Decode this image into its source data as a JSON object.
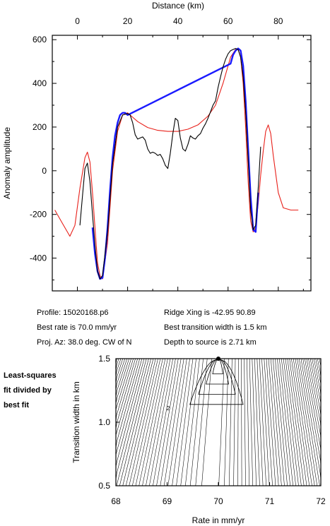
{
  "chart_data": [
    {
      "type": "line",
      "title": "",
      "xlabel": "Distance (km)",
      "ylabel": "Anomaly amplitude",
      "xlim": [
        -10,
        93
      ],
      "ylim": [
        -550,
        620
      ],
      "x_ticks": [
        0,
        20,
        40,
        60,
        80
      ],
      "y_ticks": [
        600,
        400,
        200,
        0,
        -200,
        -400
      ],
      "grid": false,
      "series": [
        {
          "color": "#e8201a",
          "x": [
            -9,
            -6,
            -3,
            -1,
            1,
            3,
            4,
            5,
            6,
            7,
            8,
            9,
            10,
            12,
            14,
            16,
            18,
            20,
            22,
            24,
            28,
            32,
            36,
            40,
            44,
            48,
            52,
            55,
            58,
            61,
            63,
            64,
            65,
            66,
            67,
            68,
            69,
            70,
            71,
            72,
            73,
            74,
            75,
            76,
            77,
            78,
            80,
            82,
            85,
            88
          ],
          "y": [
            -180,
            -240,
            -300,
            -250,
            -80,
            60,
            85,
            40,
            -100,
            -260,
            -420,
            -480,
            -495,
            -330,
            0,
            180,
            255,
            265,
            245,
            225,
            198,
            185,
            180,
            180,
            190,
            210,
            250,
            300,
            400,
            520,
            555,
            555,
            520,
            400,
            200,
            -50,
            -230,
            -280,
            -260,
            -150,
            -20,
            90,
            180,
            210,
            170,
            70,
            -100,
            -170,
            -180,
            -180
          ]
        },
        {
          "color": "#1a1aff",
          "x": [
            6,
            7,
            8,
            9,
            10,
            11,
            12,
            13,
            14,
            15,
            16,
            17,
            18,
            19,
            20,
            61,
            62,
            63,
            64,
            65,
            66,
            67,
            68,
            69,
            70,
            71,
            72
          ],
          "y": [
            -260,
            -380,
            -460,
            -495,
            -490,
            -400,
            -260,
            -90,
            60,
            160,
            220,
            255,
            265,
            265,
            255,
            490,
            530,
            550,
            560,
            550,
            480,
            320,
            100,
            -120,
            -270,
            -280,
            -100
          ]
        },
        {
          "color": "#000000",
          "x": [
            1,
            2,
            3,
            4,
            5,
            6,
            7,
            8,
            9,
            10,
            12,
            14,
            16,
            18,
            20,
            21,
            22,
            23,
            24,
            25,
            26,
            27,
            28,
            29,
            30,
            31,
            32,
            33,
            34,
            35,
            36,
            37,
            38,
            39,
            40,
            41,
            42,
            43,
            44,
            45,
            46,
            47,
            48,
            49,
            50,
            51,
            52,
            53,
            54,
            55,
            56,
            57,
            58,
            59,
            60,
            61,
            62,
            63,
            64,
            65,
            66,
            67,
            68,
            69,
            70,
            71,
            72,
            73
          ],
          "y": [
            -250,
            -120,
            10,
            35,
            -50,
            -200,
            -340,
            -460,
            -495,
            -480,
            -280,
            30,
            200,
            255,
            262,
            255,
            220,
            165,
            145,
            150,
            155,
            140,
            100,
            80,
            85,
            80,
            70,
            75,
            55,
            25,
            10,
            80,
            170,
            240,
            230,
            150,
            100,
            90,
            120,
            160,
            150,
            145,
            160,
            170,
            195,
            215,
            240,
            270,
            300,
            320,
            380,
            430,
            475,
            510,
            535,
            550,
            555,
            560,
            555,
            520,
            430,
            270,
            50,
            -180,
            -270,
            -250,
            -80,
            110
          ]
        }
      ]
    },
    {
      "type": "contour",
      "xlabel": "Rate in mm/yr",
      "ylabel": "Transition width in km",
      "xlim": [
        68,
        72
      ],
      "ylim": [
        0.5,
        1.5
      ],
      "x_ticks": [
        68,
        69,
        70,
        71,
        72
      ],
      "y_ticks": [
        1.5,
        1.0,
        0.5
      ],
      "contour_label": "2",
      "best_fit": {
        "rate": 70.0,
        "width": 1.5
      }
    }
  ],
  "profile": {
    "profile_text": "Profile: 15020168.p6",
    "ridge_text": "Ridge Xing is -42.95 90.89",
    "rate_text": "Best rate is 70.0 mm/yr",
    "width_text": "Best transition width is 1.5 km",
    "az_text": "Proj. Az: 38.0 deg. CW of N",
    "depth_text": "Depth to source is   2.71 km"
  },
  "side_note": [
    "Least-squares",
    "fit divided by",
    "best fit"
  ]
}
